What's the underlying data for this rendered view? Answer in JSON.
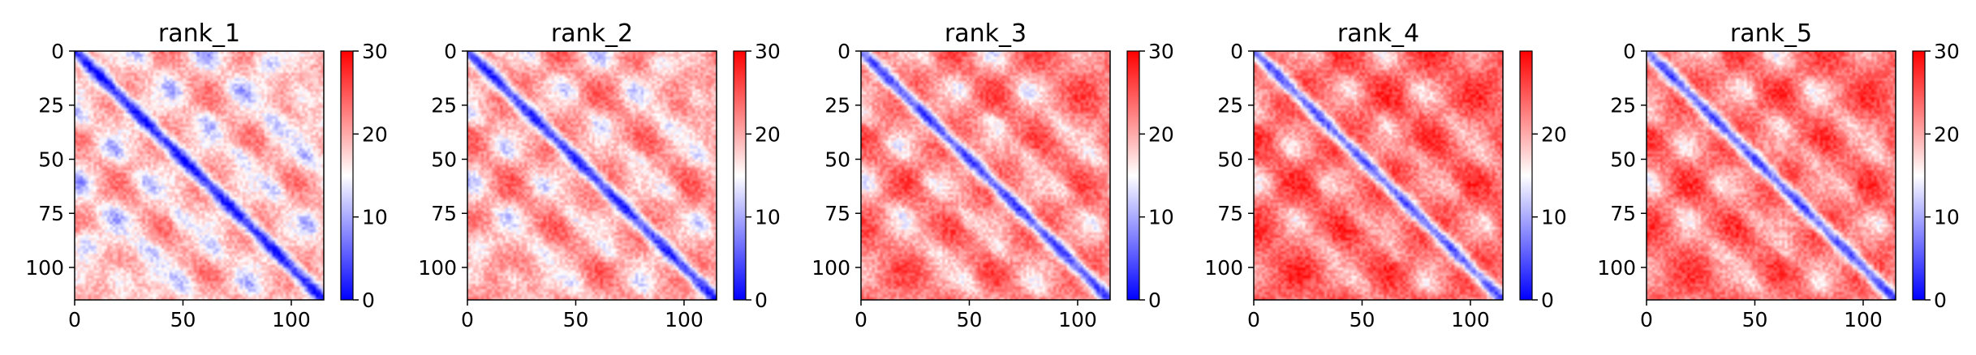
{
  "chart_data": [
    {
      "type": "heatmap",
      "title": "rank_1",
      "n": 115,
      "xlim": [
        0,
        115
      ],
      "ylim": [
        115,
        0
      ],
      "xticks": [
        0,
        50,
        100
      ],
      "yticks": [
        0,
        25,
        50,
        75,
        100
      ],
      "colorbar": {
        "min": 0,
        "max": 30,
        "ticks": [
          0,
          10,
          20,
          30
        ],
        "colormap": "bwr"
      },
      "pattern": {
        "diagonal_blue": true,
        "offdiag_blue_bands": [
          28,
          58,
          84
        ],
        "red_level": 0.35
      }
    },
    {
      "type": "heatmap",
      "title": "rank_2",
      "n": 115,
      "xlim": [
        0,
        115
      ],
      "ylim": [
        115,
        0
      ],
      "xticks": [
        0,
        50,
        100
      ],
      "yticks": [
        0,
        25,
        50,
        75,
        100
      ],
      "colorbar": {
        "min": 0,
        "max": 30,
        "ticks": [
          0,
          10,
          20,
          30
        ],
        "colormap": "bwr"
      },
      "pattern": {
        "diagonal_blue": true,
        "offdiag_blue_bands": [
          28,
          58,
          84
        ],
        "red_level": 0.5
      }
    },
    {
      "type": "heatmap",
      "title": "rank_3",
      "n": 115,
      "xlim": [
        0,
        115
      ],
      "ylim": [
        115,
        0
      ],
      "xticks": [
        0,
        50,
        100
      ],
      "yticks": [
        0,
        25,
        50,
        75,
        100
      ],
      "colorbar": {
        "min": 0,
        "max": 30,
        "ticks": [
          0,
          10,
          20,
          30
        ],
        "colormap": "bwr"
      },
      "pattern": {
        "diagonal_blue": true,
        "offdiag_blue_bands": [
          28,
          58
        ],
        "red_level": 0.65
      }
    },
    {
      "type": "heatmap",
      "title": "rank_4",
      "n": 115,
      "xlim": [
        0,
        115
      ],
      "ylim": [
        115,
        0
      ],
      "xticks": [
        0,
        50,
        100
      ],
      "yticks": [
        0,
        25,
        50,
        75,
        100
      ],
      "colorbar": {
        "min": 0,
        "max": 30,
        "ticks": [
          0,
          10,
          20
        ],
        "colormap": "bwr"
      },
      "pattern": {
        "diagonal_blue": true,
        "offdiag_blue_bands": [
          28,
          58
        ],
        "red_level": 0.8
      }
    },
    {
      "type": "heatmap",
      "title": "rank_5",
      "n": 115,
      "xlim": [
        0,
        115
      ],
      "ylim": [
        115,
        0
      ],
      "xticks": [
        0,
        50,
        100
      ],
      "yticks": [
        0,
        25,
        50,
        75,
        100
      ],
      "colorbar": {
        "min": 0,
        "max": 30,
        "ticks": [
          0,
          10,
          20,
          30
        ],
        "colormap": "bwr"
      },
      "pattern": {
        "diagonal_blue": true,
        "offdiag_blue_bands": [
          28,
          58
        ],
        "red_level": 0.75
      }
    }
  ]
}
